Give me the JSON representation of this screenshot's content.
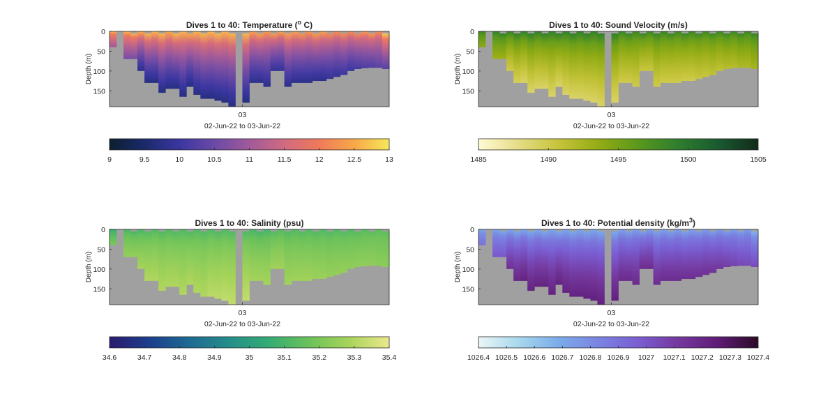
{
  "figure": {
    "panels": [
      {
        "id": "temperature",
        "title_pre": "Dives 1 to 40: Temperature (",
        "title_sup": "o",
        "title_post": " C)",
        "ylabel": "Depth (m)",
        "xtick": "03",
        "xlabel": "02-Jun-22 to 03-Jun-22",
        "colorbar_ticks": [
          "9",
          "9.5",
          "10",
          "10.5",
          "11",
          "11.5",
          "12",
          "12.5",
          "13"
        ],
        "colormap": [
          "#0b1f2e",
          "#1a2a6b",
          "#3a36a0",
          "#6b4aa6",
          "#a05a9a",
          "#d06a80",
          "#f07a5a",
          "#f8a848",
          "#f6e85a"
        ]
      },
      {
        "id": "sound-velocity",
        "title_pre": "Dives 1 to 40: Sound Velocity (m/s)",
        "title_sup": "",
        "title_post": "",
        "ylabel": "Depth (m)",
        "xtick": "03",
        "xlabel": "02-Jun-22 to 03-Jun-22",
        "colorbar_ticks": [
          "1485",
          "1490",
          "1495",
          "1500",
          "1505"
        ],
        "colormap": [
          "#fffbd4",
          "#e6dc86",
          "#c6c43a",
          "#94ac14",
          "#5a981c",
          "#2e7e2e",
          "#1a5a30",
          "#112a1a"
        ]
      },
      {
        "id": "salinity",
        "title_pre": "Dives 1 to 40: Salinity (psu)",
        "title_sup": "",
        "title_post": "",
        "ylabel": "Depth (m)",
        "xtick": "03",
        "xlabel": "02-Jun-22 to 03-Jun-22",
        "colorbar_ticks": [
          "34.6",
          "34.7",
          "34.8",
          "34.9",
          "35",
          "35.1",
          "35.2",
          "35.3",
          "35.4"
        ],
        "colormap": [
          "#2a1a6e",
          "#1c3f8c",
          "#1e6a92",
          "#248e8a",
          "#34ac74",
          "#6cc25a",
          "#a8d45a",
          "#ece88c"
        ]
      },
      {
        "id": "potential-density",
        "title_pre": "Dives 1 to 40: Potential density (kg/m",
        "title_sup": "3",
        "title_post": ")",
        "ylabel": "Depth (m)",
        "xtick": "03",
        "xlabel": "02-Jun-22 to 03-Jun-22",
        "colorbar_ticks": [
          "1026.4",
          "1026.5",
          "1026.6",
          "1026.7",
          "1026.8",
          "1026.9",
          "1027",
          "1027.1",
          "1027.2",
          "1027.3",
          "1027.4"
        ],
        "colormap": [
          "#eaf6f6",
          "#a8d8ec",
          "#7aacea",
          "#7a84e2",
          "#7a5ed2",
          "#74389e",
          "#5e1c76",
          "#2a0a26"
        ]
      }
    ]
  },
  "chart_data": [
    {
      "type": "heatmap",
      "title": "Dives 1 to 40: Temperature (o C)",
      "xlabel": "02-Jun-22 to 03-Jun-22",
      "ylabel": "Depth (m)",
      "x_ticks": [
        "03"
      ],
      "y_ticks": [
        0,
        50,
        100,
        150
      ],
      "ylim": [
        0,
        190
      ],
      "y_reversed": true,
      "colorbar_range": [
        9,
        13
      ],
      "colorbar_ticks": [
        9,
        9.5,
        10,
        10.5,
        11,
        11.5,
        12,
        12.5,
        13
      ],
      "colormap": "thermal",
      "no_data_color": "#a0a0a0",
      "columns": 40,
      "bottom_depth": [
        40,
        180,
        70,
        70,
        100,
        130,
        130,
        155,
        145,
        145,
        165,
        140,
        160,
        170,
        170,
        175,
        180,
        190,
        190,
        180,
        130,
        130,
        140,
        100,
        100,
        140,
        130,
        130,
        130,
        125,
        125,
        120,
        115,
        110,
        100,
        95,
        93,
        92,
        92,
        95
      ],
      "surface_value": [
        12.6,
        12.6,
        12.6,
        12.6,
        12.5,
        12.6,
        12.6,
        12.6,
        12.5,
        12.6,
        12.6,
        12.5,
        12.6,
        12.6,
        12.6,
        12.6,
        12.6,
        12.6,
        12.6,
        12.6,
        12.4,
        12.4,
        12.3,
        12.4,
        12.4,
        12.4,
        12.4,
        12.3,
        12.3,
        12.4,
        12.4,
        12.2,
        12.2,
        12.2,
        12.2,
        12.2,
        12.3,
        12.3,
        12.2,
        12.8
      ],
      "deep_value": [
        11.0,
        11.0,
        10.6,
        10.6,
        9.8,
        9.7,
        9.7,
        9.7,
        9.7,
        9.7,
        9.7,
        9.7,
        9.7,
        9.7,
        9.7,
        9.7,
        9.7,
        9.7,
        9.7,
        9.7,
        9.8,
        9.8,
        9.8,
        9.9,
        9.9,
        9.8,
        9.8,
        9.8,
        9.8,
        9.8,
        9.8,
        9.9,
        9.9,
        10.0,
        10.0,
        10.1,
        10.2,
        10.2,
        10.3,
        10.3
      ],
      "gap_columns": [
        1,
        18
      ]
    },
    {
      "type": "heatmap",
      "title": "Dives 1 to 40: Sound Velocity (m/s)",
      "xlabel": "02-Jun-22 to 03-Jun-22",
      "ylabel": "Depth (m)",
      "x_ticks": [
        "03"
      ],
      "y_ticks": [
        0,
        50,
        100,
        150
      ],
      "ylim": [
        0,
        190
      ],
      "y_reversed": true,
      "colorbar_range": [
        1485,
        1505
      ],
      "colorbar_ticks": [
        1485,
        1490,
        1495,
        1500,
        1505
      ],
      "colormap": "speed",
      "no_data_color": "#a0a0a0",
      "columns": 40,
      "bottom_depth": [
        40,
        180,
        70,
        70,
        100,
        130,
        130,
        155,
        145,
        145,
        165,
        140,
        160,
        170,
        170,
        175,
        180,
        190,
        190,
        180,
        130,
        130,
        140,
        100,
        100,
        140,
        130,
        130,
        130,
        125,
        125,
        120,
        115,
        110,
        100,
        95,
        93,
        92,
        92,
        95
      ],
      "surface_value": [
        1498.5,
        1499,
        1499,
        1499,
        1498.8,
        1499,
        1499,
        1499,
        1499,
        1499,
        1499,
        1499,
        1499,
        1499,
        1499,
        1499,
        1499,
        1499,
        1499,
        1499,
        1498.5,
        1498.5,
        1498.3,
        1498.5,
        1498.5,
        1498.5,
        1498.5,
        1498.3,
        1498.3,
        1498.4,
        1498.4,
        1498.2,
        1498.2,
        1498.2,
        1498.3,
        1498.3,
        1498.3,
        1498.4,
        1498.4,
        1498.6
      ],
      "deep_value": [
        1494,
        1494,
        1493,
        1493,
        1490,
        1489.5,
        1489,
        1489,
        1489,
        1489,
        1489,
        1489,
        1489,
        1489,
        1489,
        1489,
        1489,
        1489,
        1489,
        1489,
        1490,
        1490,
        1490,
        1490.5,
        1490.5,
        1490,
        1490,
        1490,
        1490,
        1490,
        1490,
        1490.5,
        1490.5,
        1491,
        1491,
        1491.5,
        1491.5,
        1492,
        1492,
        1492.5
      ],
      "gap_columns": [
        1,
        18
      ]
    },
    {
      "type": "heatmap",
      "title": "Dives 1 to 40: Salinity (psu)",
      "xlabel": "02-Jun-22 to 03-Jun-22",
      "ylabel": "Depth (m)",
      "x_ticks": [
        "03"
      ],
      "y_ticks": [
        0,
        50,
        100,
        150
      ],
      "ylim": [
        0,
        190
      ],
      "y_reversed": true,
      "colorbar_range": [
        34.6,
        35.4
      ],
      "colorbar_ticks": [
        34.6,
        34.7,
        34.8,
        34.9,
        35,
        35.1,
        35.2,
        35.3,
        35.4
      ],
      "colormap": "haline",
      "no_data_color": "#a0a0a0",
      "columns": 40,
      "bottom_depth": [
        40,
        180,
        70,
        70,
        100,
        130,
        130,
        155,
        145,
        145,
        165,
        140,
        160,
        170,
        170,
        175,
        180,
        190,
        190,
        180,
        130,
        130,
        140,
        100,
        100,
        140,
        130,
        130,
        130,
        125,
        125,
        120,
        115,
        110,
        100,
        95,
        93,
        92,
        92,
        95
      ],
      "surface_value": [
        35.05,
        35.1,
        35.1,
        35.1,
        35.1,
        35.12,
        35.12,
        35.12,
        35.12,
        35.12,
        35.12,
        35.12,
        35.12,
        35.12,
        35.12,
        35.12,
        35.12,
        35.12,
        35.12,
        35.12,
        35.1,
        35.1,
        35.1,
        35.12,
        35.12,
        35.12,
        35.12,
        35.12,
        35.12,
        35.12,
        35.12,
        35.12,
        35.12,
        35.12,
        35.12,
        35.13,
        35.13,
        35.14,
        35.14,
        35.14
      ],
      "deep_value": [
        35.2,
        35.25,
        35.25,
        35.25,
        35.28,
        35.3,
        35.3,
        35.3,
        35.3,
        35.3,
        35.3,
        35.3,
        35.3,
        35.3,
        35.32,
        35.32,
        35.33,
        35.33,
        35.33,
        35.33,
        35.28,
        35.28,
        35.28,
        35.27,
        35.27,
        35.27,
        35.27,
        35.27,
        35.27,
        35.26,
        35.26,
        35.25,
        35.25,
        35.25,
        35.24,
        35.24,
        35.24,
        35.24,
        35.23,
        35.23
      ],
      "gap_columns": [
        1,
        18
      ]
    },
    {
      "type": "heatmap",
      "title": "Dives 1 to 40: Potential density (kg/m3)",
      "xlabel": "02-Jun-22 to 03-Jun-22",
      "ylabel": "Depth (m)",
      "x_ticks": [
        "03"
      ],
      "y_ticks": [
        0,
        50,
        100,
        150
      ],
      "ylim": [
        0,
        190
      ],
      "y_reversed": true,
      "colorbar_range": [
        1026.4,
        1027.4
      ],
      "colorbar_ticks": [
        1026.4,
        1026.5,
        1026.6,
        1026.7,
        1026.8,
        1026.9,
        1027,
        1027.1,
        1027.2,
        1027.3,
        1027.4
      ],
      "colormap": "dense",
      "no_data_color": "#a0a0a0",
      "columns": 40,
      "bottom_depth": [
        40,
        180,
        70,
        70,
        100,
        130,
        130,
        155,
        145,
        145,
        165,
        140,
        160,
        170,
        170,
        175,
        180,
        190,
        190,
        180,
        130,
        130,
        140,
        100,
        100,
        140,
        130,
        130,
        130,
        125,
        125,
        120,
        115,
        110,
        100,
        95,
        93,
        92,
        92,
        95
      ],
      "surface_value": [
        1026.7,
        1026.7,
        1026.7,
        1026.7,
        1026.7,
        1026.7,
        1026.7,
        1026.7,
        1026.7,
        1026.7,
        1026.7,
        1026.7,
        1026.7,
        1026.7,
        1026.7,
        1026.7,
        1026.7,
        1026.7,
        1026.7,
        1026.7,
        1026.72,
        1026.72,
        1026.73,
        1026.72,
        1026.72,
        1026.72,
        1026.72,
        1026.73,
        1026.73,
        1026.72,
        1026.72,
        1026.74,
        1026.74,
        1026.74,
        1026.74,
        1026.74,
        1026.73,
        1026.73,
        1026.74,
        1026.66
      ],
      "deep_value": [
        1026.9,
        1026.95,
        1027.0,
        1027.0,
        1027.15,
        1027.2,
        1027.22,
        1027.22,
        1027.22,
        1027.22,
        1027.22,
        1027.22,
        1027.22,
        1027.22,
        1027.22,
        1027.23,
        1027.23,
        1027.23,
        1027.23,
        1027.23,
        1027.18,
        1027.18,
        1027.18,
        1027.17,
        1027.17,
        1027.17,
        1027.17,
        1027.17,
        1027.17,
        1027.16,
        1027.16,
        1027.15,
        1027.15,
        1027.14,
        1027.12,
        1027.1,
        1027.08,
        1027.06,
        1027.05,
        1027.04
      ],
      "gap_columns": [
        1,
        18
      ]
    }
  ]
}
